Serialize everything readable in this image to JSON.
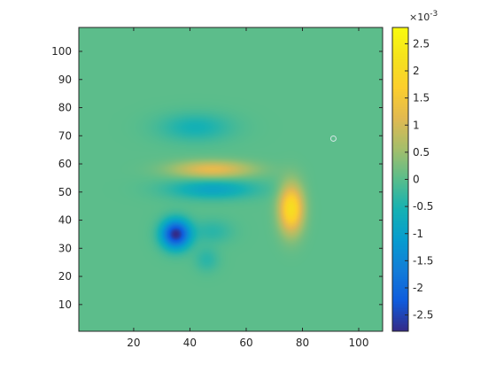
{
  "chart_data": {
    "type": "heatmap",
    "title": "",
    "xlabel": "",
    "ylabel": "",
    "xlim": [
      1,
      108
    ],
    "ylim": [
      1,
      108
    ],
    "x_ticks": [
      "20",
      "40",
      "60",
      "80",
      "100"
    ],
    "x_tick_values": [
      20,
      40,
      60,
      80,
      100
    ],
    "y_ticks": [
      "10",
      "20",
      "30",
      "40",
      "50",
      "60",
      "70",
      "80",
      "90",
      "100"
    ],
    "y_tick_values": [
      10,
      20,
      30,
      40,
      50,
      60,
      70,
      80,
      90,
      100
    ],
    "colormap": "parula",
    "color_range": [
      -0.0028,
      0.0028
    ],
    "colorbar": {
      "ticks": [
        "2.5",
        "2",
        "1.5",
        "1",
        "0.5",
        "0",
        "-0.5",
        "-1",
        "-1.5",
        "-2",
        "-2.5"
      ],
      "tick_values": [
        2.5,
        2,
        1.5,
        1,
        0.5,
        0,
        -0.5,
        -1,
        -1.5,
        -2,
        -2.5
      ],
      "exponent_label": "×10",
      "exponent": "-3",
      "range": [
        -2.8,
        2.8
      ]
    },
    "background_value": 2e-05,
    "features": [
      {
        "x": 35,
        "y": 35,
        "value": -0.0028,
        "spread": 3.5
      },
      {
        "x": 76,
        "y": 44,
        "value": 0.0021,
        "spread_x": 3.0,
        "spread_y": 6.0
      },
      {
        "x": 48,
        "y": 58,
        "value": 0.0012,
        "spread_x": 10,
        "spread_y": 2.2
      },
      {
        "x": 48,
        "y": 51,
        "value": -0.0009,
        "spread_x": 11,
        "spread_y": 2.5
      },
      {
        "x": 42,
        "y": 73,
        "value": -0.0006,
        "spread_x": 9,
        "spread_y": 3.5
      },
      {
        "x": 48,
        "y": 36,
        "value": -0.0004,
        "spread_x": 5,
        "spread_y": 3
      },
      {
        "x": 46,
        "y": 26,
        "value": -0.0004,
        "spread_x": 3,
        "spread_y": 3
      }
    ],
    "marker": {
      "x": 91,
      "y": 69,
      "shape": "circle"
    }
  }
}
